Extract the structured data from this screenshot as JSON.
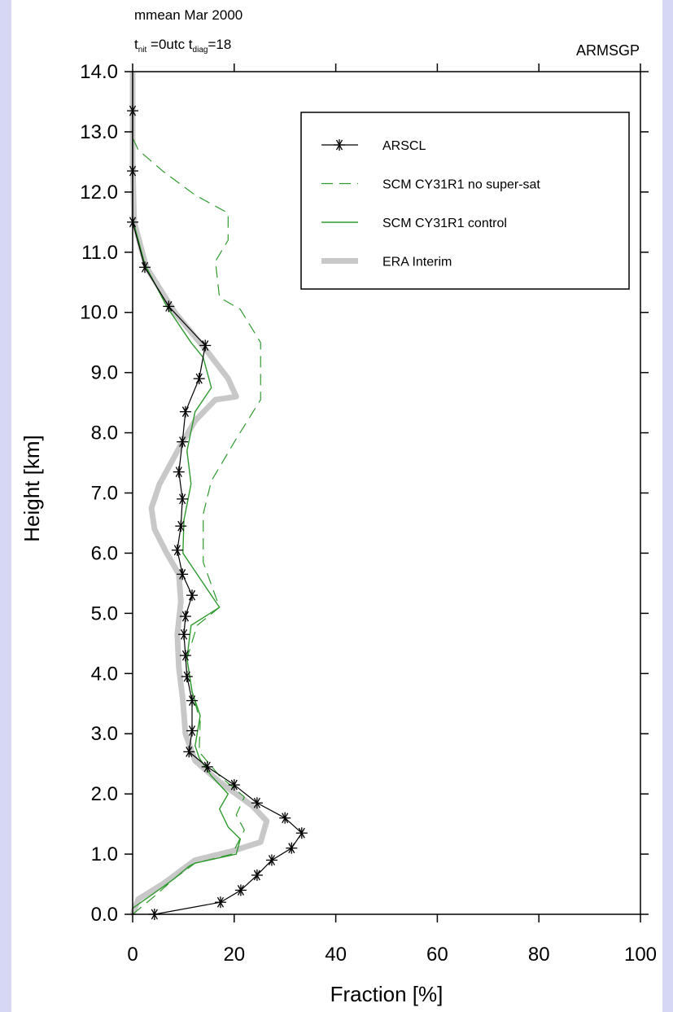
{
  "chart_data": {
    "type": "profile",
    "title": "mmean  Mar 2000",
    "subtitle": [
      "t",
      "nit",
      " =0utc  t",
      "diag",
      "=18"
    ],
    "site": "ARMSGP",
    "xlabel": "Fraction  [%]",
    "ylabel": "Height  [km]",
    "xlim": [
      0,
      100
    ],
    "xticks": [
      0,
      20,
      40,
      60,
      80,
      100
    ],
    "ylim": [
      0,
      14
    ],
    "yticks": [
      {
        "value": 0,
        "label": "0.0"
      },
      {
        "value": 1,
        "label": "1.0"
      },
      {
        "value": 2,
        "label": "2.0"
      },
      {
        "value": 3,
        "label": "3.0"
      },
      {
        "value": 4,
        "label": "4.0"
      },
      {
        "value": 5,
        "label": "5.0"
      },
      {
        "value": 6,
        "label": "6.0"
      },
      {
        "value": 7,
        "label": "7.0"
      },
      {
        "value": 8,
        "label": "8.0"
      },
      {
        "value": 9,
        "label": "9.0"
      },
      {
        "value": 10,
        "label": "10.0"
      },
      {
        "value": 11,
        "label": "11.0"
      },
      {
        "value": 12,
        "label": "12.0"
      },
      {
        "value": 13,
        "label": "13.0"
      },
      {
        "value": 14,
        "label": "14.0"
      }
    ],
    "series": [
      {
        "name": "ARSCL",
        "color": "#000000",
        "width": 1.2,
        "style": "solid",
        "marker": "asterisk",
        "x": [
          4.3,
          17.3,
          21.3,
          24.5,
          27.4,
          31.3,
          33.3,
          30.0,
          24.5,
          20.0,
          14.7,
          11.1,
          11.7,
          11.7,
          10.7,
          10.4,
          10.1,
          10.4,
          11.7,
          9.8,
          8.8,
          9.5,
          9.8,
          9.1,
          9.8,
          10.4,
          13.1,
          14.3,
          7.1,
          2.4,
          0,
          0,
          0
        ],
        "y": [
          0,
          0.2,
          0.4,
          0.65,
          0.9,
          1.1,
          1.35,
          1.6,
          1.85,
          2.15,
          2.45,
          2.7,
          3.05,
          3.55,
          3.95,
          4.3,
          4.65,
          4.95,
          5.3,
          5.65,
          6.05,
          6.45,
          6.9,
          7.35,
          7.85,
          8.35,
          8.9,
          9.45,
          10.1,
          10.75,
          11.5,
          12.35,
          13.35
        ]
      },
      {
        "name": "SCM CY31R1 no super-sat",
        "color": "#2e9a2e",
        "width": 1.2,
        "style": "dashed",
        "x": [
          0,
          4.3,
          8.3,
          12.3,
          19.6,
          22.0,
          20.4,
          22.0,
          17.1,
          13.1,
          13.3,
          11.7,
          10.7,
          12.7,
          17.1,
          13.9,
          13.9,
          15.5,
          20.4,
          25.2,
          25.2,
          21.2,
          17.1,
          16.3,
          18.8,
          18.8,
          12.3,
          5.9,
          1.1,
          0
        ],
        "y": [
          0,
          0.3,
          0.6,
          0.85,
          1.0,
          1.4,
          1.65,
          1.95,
          2.3,
          2.7,
          3.2,
          3.7,
          4.25,
          4.8,
          5.1,
          5.85,
          6.65,
          7.2,
          7.9,
          8.55,
          9.5,
          10.05,
          10.25,
          10.85,
          11.2,
          11.65,
          11.95,
          12.35,
          12.7,
          12.9
        ]
      },
      {
        "name": "SCM CY31R1 control",
        "color": "#2e9a2e",
        "width": 1.4,
        "style": "solid",
        "x": [
          0,
          5.9,
          8.3,
          11.1,
          12.3,
          20.4,
          21.2,
          18.8,
          17.1,
          18.8,
          15.5,
          13.1,
          12.3,
          13.3,
          11.7,
          10.7,
          11.5,
          17.1,
          13.1,
          9.9,
          10.1,
          11.5,
          10.7,
          12.3,
          15.5,
          13.9,
          11.5,
          6.7,
          2.4,
          0
        ],
        "y": [
          0.1,
          0.45,
          0.6,
          0.8,
          0.85,
          1.0,
          1.25,
          1.45,
          1.75,
          2.0,
          2.3,
          2.6,
          2.8,
          3.3,
          3.7,
          4.25,
          4.8,
          5.1,
          5.6,
          6.0,
          6.55,
          7.15,
          7.7,
          8.35,
          8.75,
          9.25,
          9.5,
          10.1,
          10.8,
          11.55
        ]
      },
      {
        "name": "ERA Interim",
        "color": "#c8c8c8",
        "width": 7,
        "style": "solid",
        "x": [
          0,
          1.1,
          5.9,
          12.3,
          19.6,
          25.2,
          26.4,
          23.6,
          17.1,
          12.3,
          10.4,
          9.9,
          9.1,
          8.8,
          9.5,
          9.1,
          6.7,
          4.3,
          3.7,
          5.3,
          9.5,
          12.3,
          16.3,
          20.4,
          18.8,
          14.7,
          8.3,
          2.7,
          0.3,
          0,
          0
        ],
        "y": [
          0,
          0.25,
          0.5,
          0.9,
          1.05,
          1.2,
          1.55,
          1.8,
          2.2,
          2.55,
          3.0,
          3.55,
          4.1,
          4.65,
          5.2,
          5.65,
          6.0,
          6.4,
          6.75,
          7.15,
          7.8,
          8.2,
          8.55,
          8.6,
          8.9,
          9.35,
          10.0,
          10.75,
          11.5,
          12.5,
          14
        ]
      }
    ]
  }
}
